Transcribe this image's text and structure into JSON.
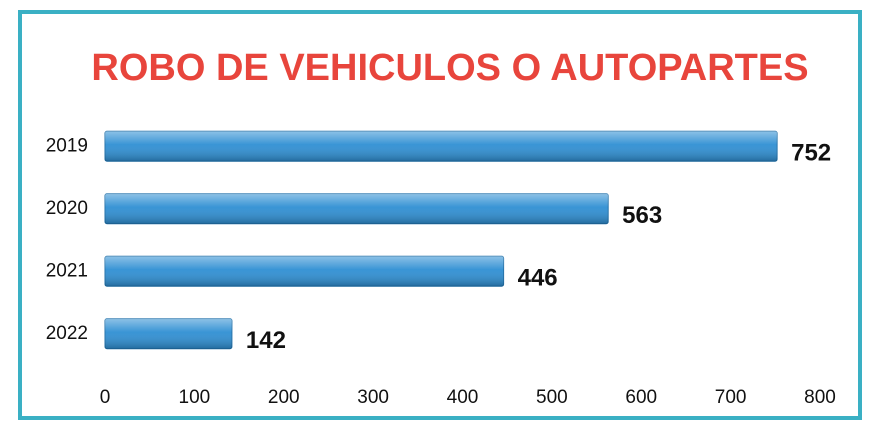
{
  "chart_data": {
    "type": "bar",
    "orientation": "horizontal",
    "title": "ROBO DE VEHICULOS O AUTOPARTES",
    "categories": [
      "2019",
      "2020",
      "2021",
      "2022"
    ],
    "values": [
      752,
      563,
      446,
      142
    ],
    "color": "#2f8fd3",
    "xlim": [
      0,
      800
    ],
    "xticks": [
      0,
      100,
      200,
      300,
      400,
      500,
      600,
      700,
      800
    ],
    "grid": false
  }
}
